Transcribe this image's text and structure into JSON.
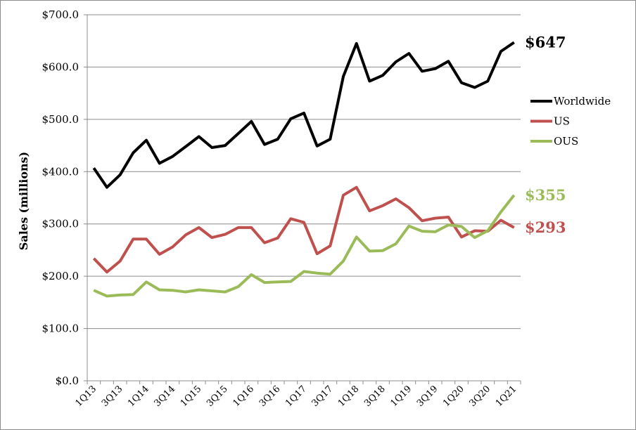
{
  "chart_data": {
    "type": "line",
    "ylabel": "Sales (millions)",
    "ylim": [
      0,
      700
    ],
    "y_ticks": [
      "$0.0",
      "$100.0",
      "$200.0",
      "$300.0",
      "$400.0",
      "$500.0",
      "$600.0",
      "$700.0"
    ],
    "y_tick_values": [
      0,
      100,
      200,
      300,
      400,
      500,
      600,
      700
    ],
    "grid": "horizontal",
    "legend_position": "right",
    "categories": [
      "1Q13",
      "2Q13",
      "3Q13",
      "4Q13",
      "1Q14",
      "2Q14",
      "3Q14",
      "4Q14",
      "1Q15",
      "2Q15",
      "3Q15",
      "4Q15",
      "1Q16",
      "2Q16",
      "3Q16",
      "4Q16",
      "1Q17",
      "2Q17",
      "3Q17",
      "4Q17",
      "1Q18",
      "2Q18",
      "3Q18",
      "4Q18",
      "1Q19",
      "2Q19",
      "3Q19",
      "4Q19",
      "1Q20",
      "2Q20",
      "3Q20",
      "4Q20",
      "1Q21"
    ],
    "x_tick_labels": [
      "1Q13",
      "3Q13",
      "1Q14",
      "3Q14",
      "1Q15",
      "3Q15",
      "1Q16",
      "3Q16",
      "1Q17",
      "3Q17",
      "1Q18",
      "3Q18",
      "1Q19",
      "3Q19",
      "1Q20",
      "3Q20",
      "1Q21"
    ],
    "series": [
      {
        "name": "Worldwide",
        "color": "#000000",
        "values": [
          407,
          370,
          394,
          436,
          460,
          416,
          429,
          448,
          467,
          446,
          450,
          473,
          496,
          452,
          462,
          501,
          512,
          449,
          462,
          582,
          645,
          573,
          584,
          610,
          626,
          592,
          597,
          611,
          570,
          561,
          573,
          630,
          647
        ],
        "end_label": "$647"
      },
      {
        "name": "US",
        "color": "#c0504d",
        "values": [
          234,
          208,
          229,
          271,
          271,
          242,
          256,
          279,
          293,
          274,
          280,
          293,
          293,
          264,
          273,
          310,
          303,
          243,
          258,
          355,
          370,
          325,
          335,
          348,
          331,
          306,
          311,
          313,
          275,
          287,
          286,
          307,
          293
        ],
        "end_label": "$293"
      },
      {
        "name": "OUS",
        "color": "#9bbb59",
        "values": [
          173,
          162,
          164,
          165,
          189,
          174,
          173,
          170,
          174,
          172,
          170,
          180,
          203,
          188,
          189,
          190,
          209,
          206,
          204,
          229,
          275,
          248,
          249,
          262,
          296,
          286,
          285,
          298,
          295,
          274,
          287,
          323,
          355
        ],
        "end_label": "$355"
      }
    ]
  }
}
